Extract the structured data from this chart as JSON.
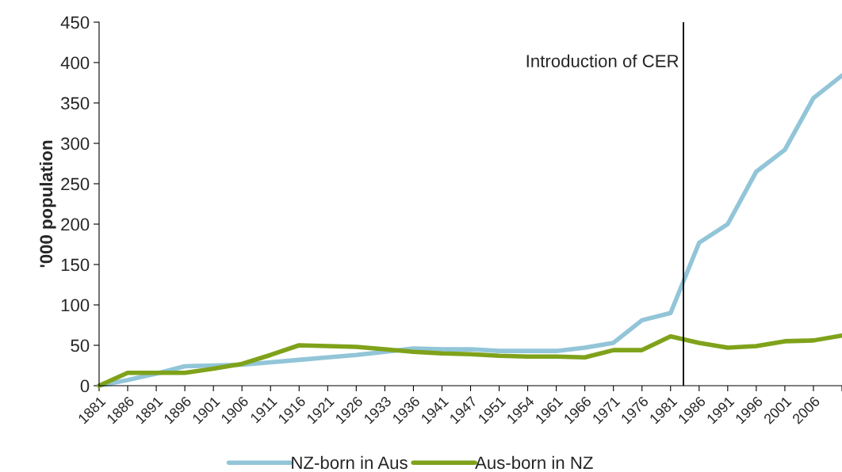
{
  "chart_data": {
    "type": "line",
    "ylabel": "'000 population",
    "categories": [
      "1881",
      "1886",
      "1891",
      "1896",
      "1901",
      "1906",
      "1911",
      "1916",
      "1921",
      "1926",
      "1933",
      "1936",
      "1941",
      "1947",
      "1951",
      "1954",
      "1961",
      "1966",
      "1971",
      "1976",
      "1981",
      "1986",
      "1991",
      "1996",
      "2001",
      "2006",
      null
    ],
    "series": [
      {
        "name": "NZ-born in Aus",
        "color": "#92c5d8",
        "values": [
          0,
          7,
          15,
          24,
          25,
          26,
          29,
          32,
          35,
          38,
          42,
          46,
          45,
          45,
          43,
          43,
          43,
          47,
          53,
          81,
          90,
          177,
          200,
          265,
          292,
          356,
          384
        ]
      },
      {
        "name": "Aus-born in NZ",
        "color": "#7fa21a",
        "values": [
          0,
          16,
          16,
          16,
          21,
          27,
          38,
          50,
          49,
          48,
          45,
          42,
          40,
          39,
          37,
          36,
          36,
          35,
          44,
          44,
          61,
          53,
          47,
          49,
          55,
          56,
          62
        ]
      }
    ],
    "ylim": [
      0,
      450
    ],
    "yticks": [
      0,
      50,
      100,
      150,
      200,
      250,
      300,
      350,
      400,
      450
    ],
    "annotations": [
      "Introduction of CER"
    ],
    "grid": false,
    "legend": "bottom",
    "marker": "none",
    "line_style": "solid"
  }
}
